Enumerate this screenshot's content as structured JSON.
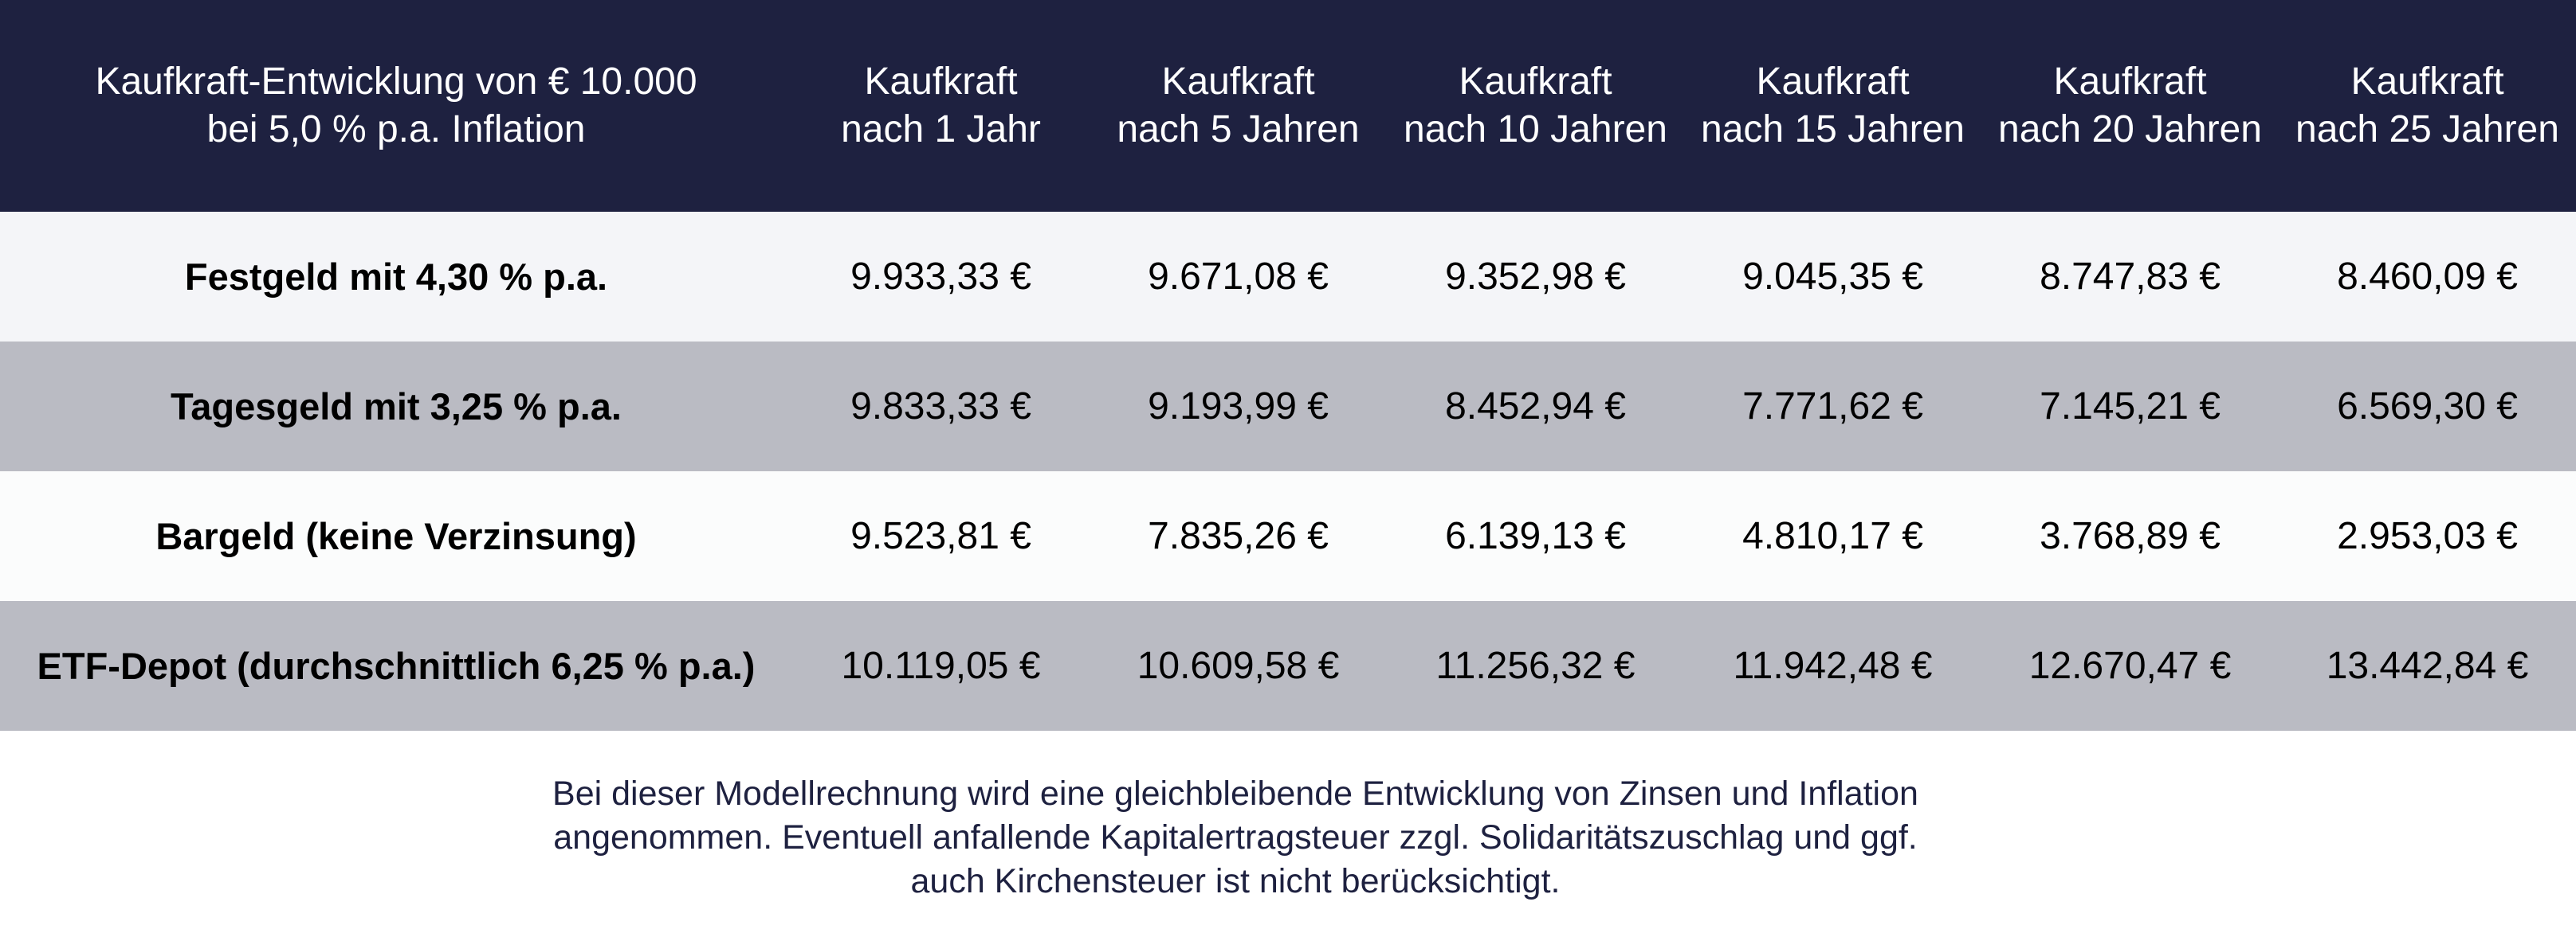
{
  "header": {
    "title_line1": "Kaufkraft-Entwicklung von € 10.000",
    "title_line2": "bei 5,0 % p.a. Inflation",
    "columns": [
      {
        "line1": "Kaufkraft",
        "line2": "nach 1 Jahr"
      },
      {
        "line1": "Kaufkraft",
        "line2": "nach 5 Jahren"
      },
      {
        "line1": "Kaufkraft",
        "line2": "nach 10 Jahren"
      },
      {
        "line1": "Kaufkraft",
        "line2": "nach 15 Jahren"
      },
      {
        "line1": "Kaufkraft",
        "line2": "nach 20 Jahren"
      },
      {
        "line1": "Kaufkraft",
        "line2": "nach 25 Jahren"
      }
    ]
  },
  "rows": [
    {
      "label": "Festgeld mit 4,30 % p.a.",
      "values": [
        "9.933,33 €",
        "9.671,08 €",
        "9.352,98 €",
        "9.045,35 €",
        "8.747,83 €",
        "8.460,09 €"
      ]
    },
    {
      "label": "Tagesgeld mit 3,25 % p.a.",
      "values": [
        "9.833,33 €",
        "9.193,99 €",
        "8.452,94 €",
        "7.771,62 €",
        "7.145,21 €",
        "6.569,30 €"
      ]
    },
    {
      "label": "Bargeld (keine Verzinsung)",
      "values": [
        "9.523,81 €",
        "7.835,26 €",
        "6.139,13 €",
        "4.810,17 €",
        "3.768,89 €",
        "2.953,03 €"
      ]
    },
    {
      "label": "ETF-Depot (durchschnittlich 6,25 % p.a.)",
      "values": [
        "10.119,05 €",
        "10.609,58 €",
        "11.256,32 €",
        "11.942,48 €",
        "12.670,47 €",
        "13.442,84 €"
      ]
    }
  ],
  "footnote": {
    "line1": "Bei dieser Modellrechnung wird eine gleichbleibende Entwicklung von Zinsen und Inflation",
    "line2": "angenommen. Eventuell anfallende Kapitalertragsteuer zzgl. Solidaritätszuschlag und ggf.",
    "line3": "auch Kirchensteuer ist nicht berücksichtigt."
  },
  "colors": {
    "header_bg": "#1e2140",
    "row_light": "#f4f5f8",
    "row_gray": "#babbc3",
    "row_white": "#fbfcfc",
    "footnote_text": "#1e2140"
  }
}
